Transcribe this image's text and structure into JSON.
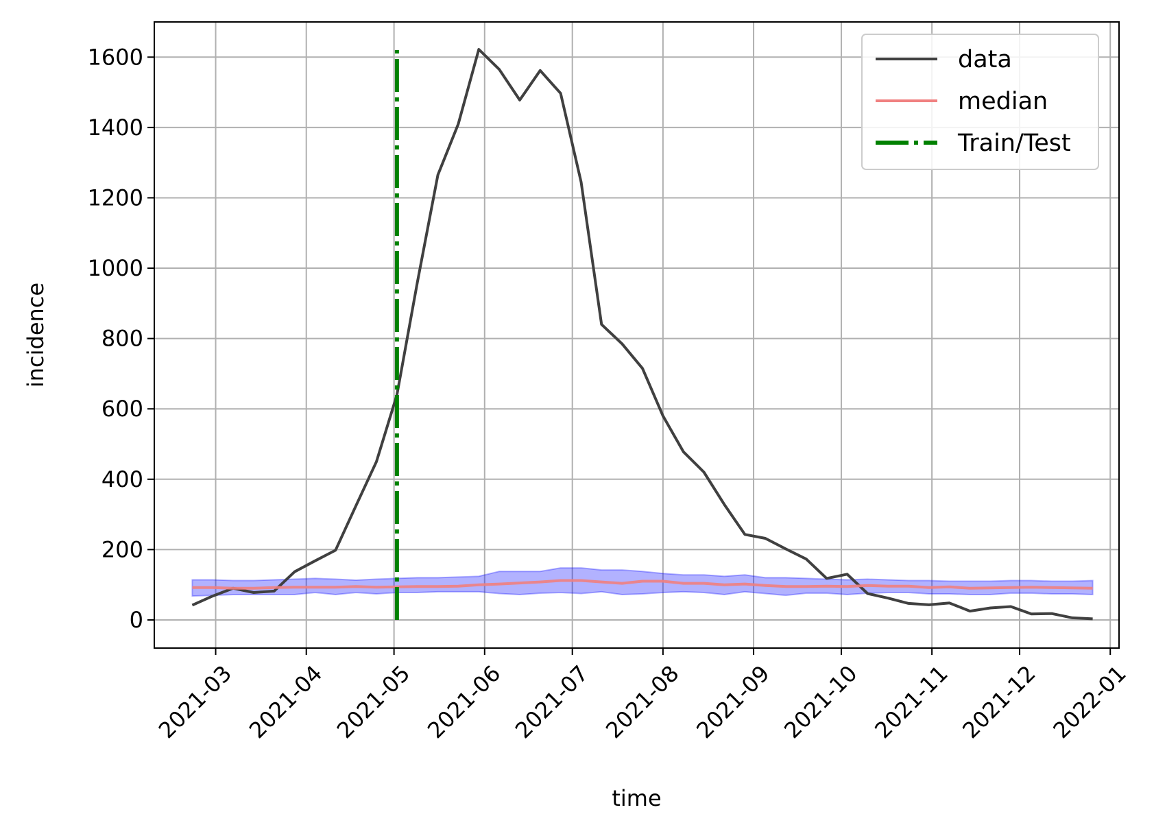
{
  "chart_data": {
    "type": "line",
    "xlabel": "time",
    "ylabel": "incidence",
    "grid": true,
    "legend_position": "top-right",
    "xlim": [
      "2021-02-08",
      "2022-01-04"
    ],
    "ylim": [
      -80,
      1700
    ],
    "x_ticks": [
      "2021-03",
      "2021-04",
      "2021-05",
      "2021-06",
      "2021-07",
      "2021-08",
      "2021-09",
      "2021-10",
      "2021-11",
      "2021-12",
      "2022-01"
    ],
    "y_ticks": [
      0,
      200,
      400,
      600,
      800,
      1000,
      1200,
      1400,
      1600
    ],
    "dates": [
      "2021-02-21",
      "2021-02-28",
      "2021-03-07",
      "2021-03-14",
      "2021-03-21",
      "2021-03-28",
      "2021-04-04",
      "2021-04-11",
      "2021-04-18",
      "2021-04-25",
      "2021-05-02",
      "2021-05-09",
      "2021-05-16",
      "2021-05-23",
      "2021-05-30",
      "2021-06-06",
      "2021-06-13",
      "2021-06-20",
      "2021-06-27",
      "2021-07-04",
      "2021-07-11",
      "2021-07-18",
      "2021-07-25",
      "2021-08-01",
      "2021-08-08",
      "2021-08-15",
      "2021-08-22",
      "2021-08-29",
      "2021-09-05",
      "2021-09-12",
      "2021-09-19",
      "2021-09-26",
      "2021-10-03",
      "2021-10-10",
      "2021-10-17",
      "2021-10-24",
      "2021-10-31",
      "2021-11-07",
      "2021-11-14",
      "2021-11-21",
      "2021-11-28",
      "2021-12-05",
      "2021-12-12",
      "2021-12-19",
      "2021-12-26"
    ],
    "series": [
      {
        "name": "data",
        "color": "#404040",
        "values": [
          42,
          68,
          90,
          78,
          82,
          137,
          168,
          198,
          325,
          450,
          640,
          960,
          1265,
          1410,
          1622,
          1565,
          1478,
          1562,
          1497,
          1245,
          840,
          785,
          715,
          580,
          478,
          420,
          328,
          243,
          232,
          202,
          173,
          118,
          130,
          75,
          62,
          47,
          43,
          48,
          25,
          34,
          38,
          17,
          18,
          6,
          3
        ]
      },
      {
        "name": "median",
        "color": "#f08080",
        "values": [
          92,
          92,
          90,
          90,
          92,
          93,
          93,
          93,
          95,
          93,
          94,
          95,
          95,
          96,
          100,
          102,
          105,
          108,
          112,
          112,
          108,
          104,
          110,
          110,
          104,
          104,
          100,
          102,
          98,
          95,
          95,
          96,
          95,
          98,
          96,
          96,
          92,
          94,
          90,
          91,
          92,
          93,
          92,
          91,
          90
        ]
      },
      {
        "name": "Train/Test",
        "color": "#008000",
        "date": "2021-05-02",
        "y_range": [
          0,
          1620
        ]
      }
    ],
    "band": {
      "color": "#0000ff",
      "lower": [
        68,
        70,
        72,
        72,
        72,
        72,
        78,
        72,
        78,
        74,
        78,
        78,
        80,
        80,
        80,
        75,
        72,
        76,
        78,
        75,
        80,
        72,
        74,
        78,
        80,
        78,
        72,
        80,
        75,
        70,
        76,
        76,
        72,
        76,
        78,
        78,
        74,
        74,
        72,
        72,
        76,
        76,
        74,
        74,
        72
      ],
      "upper": [
        114,
        114,
        112,
        112,
        114,
        116,
        118,
        116,
        113,
        116,
        118,
        120,
        120,
        122,
        124,
        138,
        138,
        138,
        148,
        148,
        142,
        142,
        138,
        132,
        128,
        128,
        124,
        128,
        120,
        120,
        118,
        116,
        114,
        116,
        114,
        112,
        112,
        110,
        110,
        110,
        112,
        112,
        110,
        110,
        112
      ]
    }
  }
}
